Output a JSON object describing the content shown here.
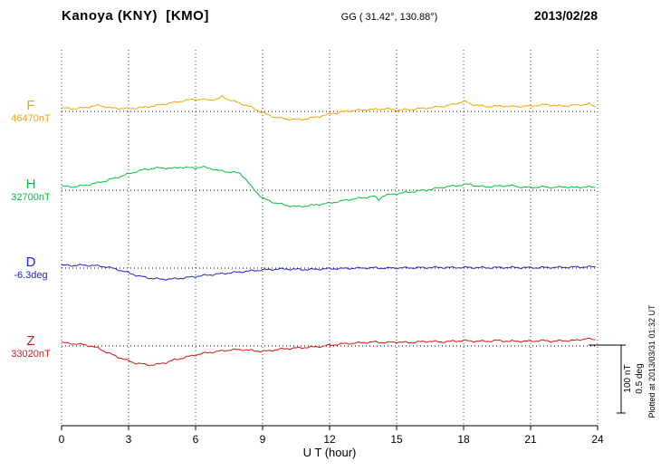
{
  "header": {
    "station": "Kanoya (KNY)  [KMO]",
    "coords": "GG ( 31.42°, 130.88°)",
    "date": "2013/02/28"
  },
  "xaxis": {
    "label": "U T (hour)",
    "ticks": [
      0,
      3,
      6,
      9,
      12,
      15,
      18,
      21,
      24
    ]
  },
  "scale_bar": {
    "line1": "100 nT",
    "line2": "0.5 deg"
  },
  "footer_note": "Plotted at 2013/03/31 01:32 UT",
  "chart_data": {
    "type": "line",
    "title": "Kanoya (KNY)  [KMO]",
    "subtitle": "GG ( 31.42°, 130.88°)  —  2013/02/28",
    "xlabel": "U T (hour)",
    "x_range": [
      0,
      24
    ],
    "grid": "vertical dotted every 3 hours; dotted horizontal baseline per channel",
    "legend_position": "left channel labels",
    "points_format": "[hour_UT, offset_from_baseline_in_unit]",
    "scale": {
      "nT_span": 100,
      "deg_span": 0.5
    },
    "series": [
      {
        "name": "F",
        "unit": "nT",
        "baseline_label": "46470nT",
        "baseline_value": 46470,
        "color": "#f0a500",
        "points": [
          [
            0,
            5
          ],
          [
            0.7,
            4
          ],
          [
            1.3,
            7
          ],
          [
            1.7,
            9
          ],
          [
            2.2,
            5
          ],
          [
            3,
            4
          ],
          [
            3.7,
            6
          ],
          [
            4.3,
            9
          ],
          [
            5,
            13
          ],
          [
            5.5,
            16
          ],
          [
            6,
            18
          ],
          [
            6.5,
            17
          ],
          [
            7,
            18
          ],
          [
            7.2,
            22
          ],
          [
            7.5,
            17
          ],
          [
            8,
            12
          ],
          [
            8.5,
            6
          ],
          [
            9,
            -2
          ],
          [
            9.5,
            -8
          ],
          [
            10,
            -11
          ],
          [
            10.7,
            -12
          ],
          [
            11.3,
            -9
          ],
          [
            12,
            -4
          ],
          [
            12.7,
            0
          ],
          [
            13.3,
            2
          ],
          [
            14,
            3
          ],
          [
            14.5,
            4
          ],
          [
            15,
            2
          ],
          [
            15.7,
            3
          ],
          [
            16.3,
            5
          ],
          [
            17,
            7
          ],
          [
            17.5,
            10
          ],
          [
            18,
            15
          ],
          [
            18.3,
            11
          ],
          [
            19,
            7
          ],
          [
            19.7,
            8
          ],
          [
            20.3,
            7
          ],
          [
            21,
            8
          ],
          [
            21.7,
            10
          ],
          [
            22.3,
            8
          ],
          [
            23,
            9
          ],
          [
            23.6,
            11
          ],
          [
            23.9,
            7
          ]
        ]
      },
      {
        "name": "H",
        "unit": "nT",
        "baseline_label": "32700nT",
        "baseline_value": 32700,
        "color": "#00c040",
        "points": [
          [
            0,
            6
          ],
          [
            0.5,
            5
          ],
          [
            1,
            7
          ],
          [
            1.5,
            10
          ],
          [
            2,
            14
          ],
          [
            2.5,
            19
          ],
          [
            3,
            24
          ],
          [
            3.5,
            29
          ],
          [
            4,
            32
          ],
          [
            4.5,
            33
          ],
          [
            5,
            32
          ],
          [
            5.3,
            34
          ],
          [
            5.7,
            33
          ],
          [
            6,
            33
          ],
          [
            6.3,
            34
          ],
          [
            6.7,
            32
          ],
          [
            7,
            29
          ],
          [
            7.5,
            27
          ],
          [
            8,
            25
          ],
          [
            8.2,
            18
          ],
          [
            8.5,
            5
          ],
          [
            8.8,
            -5
          ],
          [
            9,
            -12
          ],
          [
            9.5,
            -18
          ],
          [
            10,
            -22
          ],
          [
            10.5,
            -24
          ],
          [
            11,
            -23
          ],
          [
            11.5,
            -21
          ],
          [
            12,
            -19
          ],
          [
            12.5,
            -16
          ],
          [
            13,
            -13
          ],
          [
            13.5,
            -11
          ],
          [
            14,
            -9
          ],
          [
            14.2,
            -14
          ],
          [
            14.4,
            -8
          ],
          [
            15,
            -5
          ],
          [
            15.5,
            -3
          ],
          [
            16,
            -1
          ],
          [
            16.5,
            1
          ],
          [
            17,
            4
          ],
          [
            17.5,
            6
          ],
          [
            18,
            8
          ],
          [
            18.3,
            9
          ],
          [
            18.6,
            6
          ],
          [
            19,
            5
          ],
          [
            19.5,
            6
          ],
          [
            20,
            7
          ],
          [
            20.5,
            5
          ],
          [
            21,
            4
          ],
          [
            21.5,
            5
          ],
          [
            22,
            4
          ],
          [
            22.5,
            5
          ],
          [
            23,
            4
          ],
          [
            23.5,
            5
          ],
          [
            23.9,
            4
          ]
        ]
      },
      {
        "name": "D",
        "unit": "deg",
        "baseline_label": "-6.3deg",
        "baseline_value": -6.3,
        "color": "#2020d0",
        "points": [
          [
            0,
            0.02
          ],
          [
            0.5,
            0.02
          ],
          [
            1,
            0.022
          ],
          [
            1.5,
            0.018
          ],
          [
            2,
            0.01
          ],
          [
            2.5,
            -0.01
          ],
          [
            3,
            -0.035
          ],
          [
            3.5,
            -0.06
          ],
          [
            4,
            -0.075
          ],
          [
            4.5,
            -0.082
          ],
          [
            5,
            -0.08
          ],
          [
            5.5,
            -0.072
          ],
          [
            6,
            -0.062
          ],
          [
            6.5,
            -0.052
          ],
          [
            7,
            -0.044
          ],
          [
            7.5,
            -0.036
          ],
          [
            8,
            -0.028
          ],
          [
            8.5,
            -0.02
          ],
          [
            9,
            -0.013
          ],
          [
            9.5,
            -0.009
          ],
          [
            10,
            -0.006
          ],
          [
            10.5,
            -0.009
          ],
          [
            11,
            -0.011
          ],
          [
            11.5,
            -0.008
          ],
          [
            12,
            -0.005
          ],
          [
            12.5,
            -0.003
          ],
          [
            13,
            -0.001
          ],
          [
            13.5,
            0.001
          ],
          [
            14,
            0.002
          ],
          [
            14.5,
            0
          ],
          [
            15,
            0.001
          ],
          [
            15.5,
            0.002
          ],
          [
            16,
            0.003
          ],
          [
            16.5,
            0.004
          ],
          [
            17,
            0.005
          ],
          [
            17.5,
            0.004
          ],
          [
            18,
            0.005
          ],
          [
            18.5,
            0.004
          ],
          [
            19,
            0.003
          ],
          [
            19.5,
            0.004
          ],
          [
            20,
            0.005
          ],
          [
            20.5,
            0.004
          ],
          [
            21,
            0.003
          ],
          [
            21.5,
            0.004
          ],
          [
            22,
            0.005
          ],
          [
            22.5,
            0.006
          ],
          [
            23,
            0.008
          ],
          [
            23.5,
            0.009
          ],
          [
            23.9,
            0.01
          ]
        ]
      },
      {
        "name": "Z",
        "unit": "nT",
        "baseline_label": "33020nT",
        "baseline_value": 33020,
        "color": "#e01010",
        "points": [
          [
            0,
            5
          ],
          [
            0.3,
            4
          ],
          [
            0.7,
            3
          ],
          [
            1,
            2
          ],
          [
            1.3,
            0
          ],
          [
            1.7,
            -4
          ],
          [
            2,
            -9
          ],
          [
            2.5,
            -16
          ],
          [
            3,
            -22
          ],
          [
            3.3,
            -25
          ],
          [
            3.7,
            -27
          ],
          [
            4,
            -28
          ],
          [
            4.3,
            -27
          ],
          [
            4.7,
            -24
          ],
          [
            5,
            -21
          ],
          [
            5.5,
            -17
          ],
          [
            6,
            -13
          ],
          [
            6.5,
            -10
          ],
          [
            7,
            -8
          ],
          [
            7.5,
            -6
          ],
          [
            8,
            -5
          ],
          [
            8.3,
            -6
          ],
          [
            8.7,
            -7
          ],
          [
            9,
            -8
          ],
          [
            9.3,
            -7
          ],
          [
            9.7,
            -5
          ],
          [
            10,
            -4
          ],
          [
            10.5,
            -3
          ],
          [
            11,
            -2
          ],
          [
            11.5,
            -1
          ],
          [
            12,
            1
          ],
          [
            12.5,
            3
          ],
          [
            13,
            4
          ],
          [
            13.5,
            5
          ],
          [
            14,
            6
          ],
          [
            14.5,
            5
          ],
          [
            15,
            6
          ],
          [
            15.5,
            5
          ],
          [
            16,
            6
          ],
          [
            16.5,
            7
          ],
          [
            17,
            6
          ],
          [
            17.5,
            7
          ],
          [
            18,
            8
          ],
          [
            18.5,
            7
          ],
          [
            19,
            7
          ],
          [
            19.5,
            8
          ],
          [
            20,
            7
          ],
          [
            20.5,
            7
          ],
          [
            21,
            7
          ],
          [
            21.5,
            8
          ],
          [
            22,
            7
          ],
          [
            22.5,
            8
          ],
          [
            23,
            8
          ],
          [
            23.5,
            11
          ],
          [
            23.9,
            9
          ]
        ]
      }
    ]
  }
}
